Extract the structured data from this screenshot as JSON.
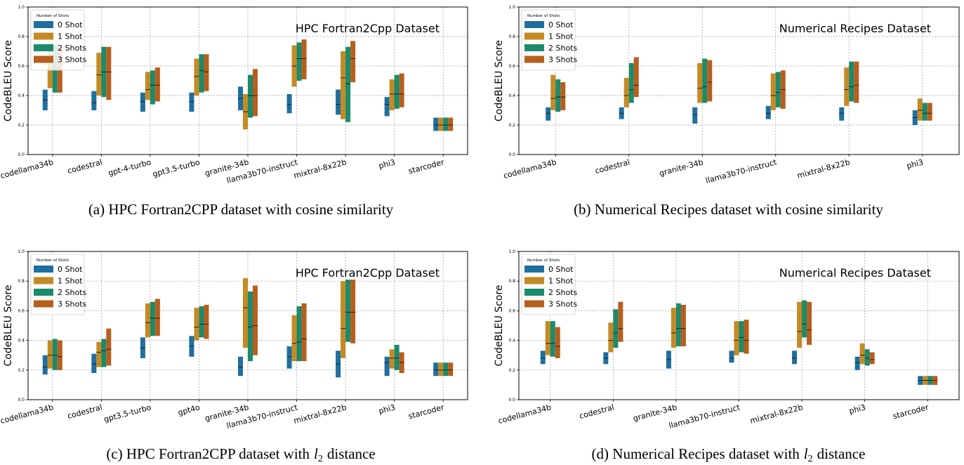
{
  "colors": {
    "0 Shot": "#1f6f9e",
    "1 Shot": "#c48a25",
    "2 Shots": "#1c8a6b",
    "3 Shots": "#b65f1e",
    "grid": "#999999"
  },
  "panels": [
    {
      "caption": "(a) HPC Fortran2CPP dataset with cosine similarity",
      "chart_data": {
        "type": "bar",
        "title": "HPC Fortran2Cpp Dataset",
        "ylabel": "CodeBLEU Score",
        "ylim": [
          0.0,
          1.0
        ],
        "yticks": [
          "0.0",
          "0.2",
          "0.4",
          "0.6",
          "0.8",
          "1.0"
        ],
        "grid": true,
        "legend_title": "Number of Shots",
        "legend_position": "top-left",
        "series_names": [
          "0 Shot",
          "1 Shot",
          "2 Shots",
          "3 Shots"
        ],
        "categories": [
          "codellama34b",
          "codestral",
          "gpt-4-turbo",
          "gpt3.5-turbo",
          "granite-34b",
          "llama3b70-instruct",
          "mixtral-8x22b",
          "phi3",
          "starcoder"
        ],
        "ranges": [
          [
            [
              0.3,
              0.44,
              0.37
            ],
            [
              0.45,
              0.71,
              0.58
            ],
            [
              0.42,
              0.74,
              0.58
            ],
            [
              0.42,
              0.72,
              0.58
            ]
          ],
          [
            [
              0.3,
              0.43,
              0.35
            ],
            [
              0.4,
              0.69,
              0.54
            ],
            [
              0.39,
              0.73,
              0.56
            ],
            [
              0.37,
              0.73,
              0.56
            ]
          ],
          [
            [
              0.29,
              0.42,
              0.36
            ],
            [
              0.37,
              0.56,
              0.44
            ],
            [
              0.34,
              0.57,
              0.47
            ],
            [
              0.36,
              0.59,
              0.47
            ]
          ],
          [
            [
              0.29,
              0.42,
              0.36
            ],
            [
              0.4,
              0.65,
              0.53
            ],
            [
              0.42,
              0.68,
              0.57
            ],
            [
              0.43,
              0.68,
              0.56
            ]
          ],
          [
            [
              0.3,
              0.46,
              0.38
            ],
            [
              0.17,
              0.41,
              0.29
            ],
            [
              0.25,
              0.54,
              0.4
            ],
            [
              0.26,
              0.58,
              0.4
            ]
          ],
          [
            [
              0.28,
              0.41,
              0.34
            ],
            [
              0.46,
              0.74,
              0.6
            ],
            [
              0.5,
              0.76,
              0.65
            ],
            [
              0.51,
              0.78,
              0.65
            ]
          ],
          [
            [
              0.27,
              0.44,
              0.34
            ],
            [
              0.24,
              0.7,
              0.52
            ],
            [
              0.22,
              0.73,
              0.48
            ],
            [
              0.49,
              0.77,
              0.65
            ]
          ],
          [
            [
              0.26,
              0.39,
              0.34
            ],
            [
              0.3,
              0.51,
              0.41
            ],
            [
              0.31,
              0.54,
              0.41
            ],
            [
              0.32,
              0.55,
              0.41
            ]
          ],
          [
            [
              0.16,
              0.25,
              0.2
            ],
            [
              0.16,
              0.25,
              0.2
            ],
            [
              0.16,
              0.25,
              0.2
            ],
            [
              0.16,
              0.25,
              0.2
            ]
          ]
        ]
      }
    },
    {
      "caption": "(b) Numerical Recipes dataset with cosine similarity",
      "chart_data": {
        "type": "bar",
        "title": "Numerical Recipes Dataset",
        "ylabel": "CodeBLEU Score",
        "ylim": [
          0.0,
          1.0
        ],
        "yticks": [
          "0.0",
          "0.2",
          "0.4",
          "0.6",
          "0.8",
          "1.0"
        ],
        "grid": true,
        "legend_title": "Number of Shots",
        "legend_position": "top-left",
        "series_names": [
          "0 Shot",
          "1 Shot",
          "2 Shots",
          "3 Shots"
        ],
        "categories": [
          "codellama34b",
          "codestral",
          "granite-34b",
          "llama3b70-instruct",
          "mixtral-8x22b",
          "phi3"
        ],
        "ranges": [
          [
            [
              0.23,
              0.32,
              0.28
            ],
            [
              0.3,
              0.54,
              0.38
            ],
            [
              0.29,
              0.51,
              0.39
            ],
            [
              0.3,
              0.49,
              0.39
            ]
          ],
          [
            [
              0.24,
              0.32,
              0.28
            ],
            [
              0.32,
              0.52,
              0.4
            ],
            [
              0.35,
              0.62,
              0.44
            ],
            [
              0.39,
              0.66,
              0.47
            ]
          ],
          [
            [
              0.21,
              0.32,
              0.27
            ],
            [
              0.35,
              0.62,
              0.45
            ],
            [
              0.35,
              0.65,
              0.46
            ],
            [
              0.36,
              0.64,
              0.49
            ]
          ],
          [
            [
              0.24,
              0.33,
              0.28
            ],
            [
              0.3,
              0.55,
              0.4
            ],
            [
              0.32,
              0.56,
              0.42
            ],
            [
              0.31,
              0.57,
              0.44
            ]
          ],
          [
            [
              0.23,
              0.32,
              0.28
            ],
            [
              0.33,
              0.59,
              0.44
            ],
            [
              0.36,
              0.63,
              0.46
            ],
            [
              0.35,
              0.63,
              0.47
            ]
          ],
          [
            [
              0.2,
              0.3,
              0.25
            ],
            [
              0.23,
              0.38,
              0.3
            ],
            [
              0.23,
              0.35,
              0.28
            ],
            [
              0.23,
              0.35,
              0.28
            ]
          ]
        ]
      }
    },
    {
      "caption": "(c) HPC Fortran2CPP dataset with",
      "caption_math": "l",
      "caption_sub": "2",
      "caption_end": "distance",
      "chart_data": {
        "type": "bar",
        "title": "HPC Fortran2Cpp Dataset",
        "ylabel": "CodeBLEU Score",
        "ylim": [
          0.0,
          1.0
        ],
        "yticks": [
          "0.0",
          "0.2",
          "0.4",
          "0.6",
          "0.8",
          "1.0"
        ],
        "grid": true,
        "legend_title": "Number of Shots",
        "legend_position": "top-left",
        "series_names": [
          "0 Shot",
          "1 Shot",
          "2 Shots",
          "3 Shots"
        ],
        "categories": [
          "codellama34b",
          "codestral",
          "gpt3.5-turbo",
          "gpt4o",
          "granite-34b",
          "llama3b70-instruct",
          "mixtral-8x22b",
          "phi3",
          "starcoder"
        ],
        "ranges": [
          [
            [
              0.17,
              0.3,
              0.22
            ],
            [
              0.21,
              0.4,
              0.3
            ],
            [
              0.2,
              0.41,
              0.3
            ],
            [
              0.2,
              0.4,
              0.29
            ]
          ],
          [
            [
              0.18,
              0.31,
              0.24
            ],
            [
              0.22,
              0.39,
              0.32
            ],
            [
              0.22,
              0.41,
              0.33
            ],
            [
              0.23,
              0.48,
              0.34
            ]
          ],
          [
            [
              0.28,
              0.42,
              0.35
            ],
            [
              0.42,
              0.65,
              0.52
            ],
            [
              0.43,
              0.66,
              0.55
            ],
            [
              0.43,
              0.68,
              0.55
            ]
          ],
          [
            [
              0.29,
              0.43,
              0.36
            ],
            [
              0.4,
              0.62,
              0.49
            ],
            [
              0.42,
              0.63,
              0.51
            ],
            [
              0.41,
              0.64,
              0.51
            ]
          ],
          [
            [
              0.16,
              0.29,
              0.22
            ],
            [
              0.35,
              0.82,
              0.62
            ],
            [
              0.26,
              0.73,
              0.49
            ],
            [
              0.3,
              0.77,
              0.5
            ]
          ],
          [
            [
              0.21,
              0.36,
              0.29
            ],
            [
              0.26,
              0.57,
              0.38
            ],
            [
              0.26,
              0.63,
              0.39
            ],
            [
              0.26,
              0.65,
              0.41
            ]
          ],
          [
            [
              0.15,
              0.33,
              0.24
            ],
            [
              0.28,
              0.8,
              0.48
            ],
            [
              0.39,
              0.81,
              0.59
            ],
            [
              0.38,
              0.81,
              0.59
            ]
          ],
          [
            [
              0.16,
              0.29,
              0.25
            ],
            [
              0.21,
              0.34,
              0.28
            ],
            [
              0.2,
              0.37,
              0.28
            ],
            [
              0.18,
              0.32,
              0.25
            ]
          ],
          [
            [
              0.16,
              0.25,
              0.2
            ],
            [
              0.16,
              0.25,
              0.2
            ],
            [
              0.16,
              0.25,
              0.2
            ],
            [
              0.16,
              0.25,
              0.2
            ]
          ]
        ]
      }
    },
    {
      "caption": "(d) Numerical Recipes dataset with",
      "caption_math": "l",
      "caption_sub": "2",
      "caption_end": "distance",
      "chart_data": {
        "type": "bar",
        "title": "Numerical Recipes Dataset",
        "ylabel": "CodeBLEU Score",
        "ylim": [
          0.0,
          1.0
        ],
        "yticks": [
          "0.0",
          "0.2",
          "0.4",
          "0.6",
          "0.8",
          "1.0"
        ],
        "grid": true,
        "legend_title": "Number of Shots",
        "legend_position": "top-left",
        "series_names": [
          "0 Shot",
          "1 Shot",
          "2 Shots",
          "3 Shots"
        ],
        "categories": [
          "codellama34b",
          "codestral",
          "granite-34b",
          "llama3b70-instruct",
          "mixtral-8x22b",
          "phi3",
          "starcoder"
        ],
        "ranges": [
          [
            [
              0.24,
              0.33,
              0.28
            ],
            [
              0.3,
              0.53,
              0.38
            ],
            [
              0.29,
              0.53,
              0.38
            ],
            [
              0.28,
              0.49,
              0.36
            ]
          ],
          [
            [
              0.24,
              0.32,
              0.28
            ],
            [
              0.32,
              0.52,
              0.4
            ],
            [
              0.35,
              0.61,
              0.45
            ],
            [
              0.39,
              0.66,
              0.48
            ]
          ],
          [
            [
              0.21,
              0.33,
              0.27
            ],
            [
              0.35,
              0.62,
              0.45
            ],
            [
              0.36,
              0.65,
              0.48
            ],
            [
              0.36,
              0.64,
              0.48
            ]
          ],
          [
            [
              0.25,
              0.33,
              0.28
            ],
            [
              0.3,
              0.53,
              0.4
            ],
            [
              0.32,
              0.53,
              0.42
            ],
            [
              0.31,
              0.54,
              0.4
            ]
          ],
          [
            [
              0.24,
              0.33,
              0.28
            ],
            [
              0.35,
              0.66,
              0.46
            ],
            [
              0.42,
              0.67,
              0.51
            ],
            [
              0.37,
              0.66,
              0.47
            ]
          ],
          [
            [
              0.2,
              0.29,
              0.25
            ],
            [
              0.24,
              0.38,
              0.3
            ],
            [
              0.23,
              0.34,
              0.28
            ],
            [
              0.24,
              0.32,
              0.27
            ]
          ],
          [
            [
              0.1,
              0.16,
              0.13
            ],
            [
              0.1,
              0.16,
              0.13
            ],
            [
              0.1,
              0.16,
              0.13
            ],
            [
              0.1,
              0.16,
              0.13
            ]
          ]
        ]
      }
    }
  ]
}
